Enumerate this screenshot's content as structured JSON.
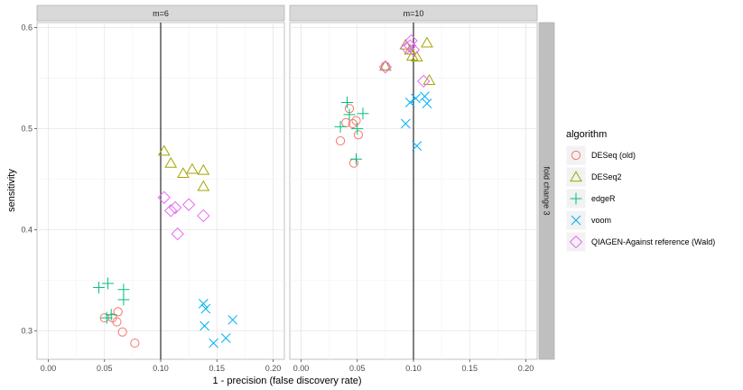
{
  "colors": {
    "DESeq (old)": "#F8766D",
    "DESeq2": "#A3A500",
    "edgeR": "#00BF7D",
    "voom": "#00B0F6",
    "QIAGEN-Against reference (Wald)": "#E76BF3"
  },
  "chart_data": {
    "type": "scatter",
    "xlabel": "1 - precision (false discovery rate)",
    "ylabel": "sensitivity",
    "xlim": [
      -0.01,
      0.21
    ],
    "ylim": [
      0.272,
      0.605
    ],
    "xticks": [
      "0.00",
      "0.05",
      "0.10",
      "0.15",
      "0.20"
    ],
    "xtick_values": [
      0,
      0.05,
      0.1,
      0.15,
      0.2
    ],
    "yticks": [
      "0.3",
      "0.4",
      "0.5",
      "0.6"
    ],
    "ytick_values": [
      0.3,
      0.4,
      0.5,
      0.6
    ],
    "vline_x": 0.1,
    "grid": true,
    "row_strip": "fold change 3",
    "legend": {
      "title": "algorithm",
      "placement": "right",
      "entries": [
        {
          "label": "DESeq (old)",
          "shape": "circle"
        },
        {
          "label": "DESeq2",
          "shape": "triangle"
        },
        {
          "label": "edgeR",
          "shape": "plus"
        },
        {
          "label": "voom",
          "shape": "cross"
        },
        {
          "label": "QIAGEN-Against reference (Wald)",
          "shape": "diamond"
        }
      ]
    },
    "panels": [
      {
        "label": "m=6",
        "series": [
          {
            "name": "DESeq (old)",
            "points": [
              [
                0.05,
                0.313
              ],
              [
                0.057,
                0.313
              ],
              [
                0.061,
                0.309
              ],
              [
                0.062,
                0.319
              ],
              [
                0.066,
                0.299
              ],
              [
                0.077,
                0.288
              ]
            ]
          },
          {
            "name": "DESeq2",
            "points": [
              [
                0.103,
                0.478
              ],
              [
                0.109,
                0.466
              ],
              [
                0.12,
                0.456
              ],
              [
                0.128,
                0.46
              ],
              [
                0.138,
                0.459
              ],
              [
                0.138,
                0.443
              ]
            ]
          },
          {
            "name": "edgeR",
            "points": [
              [
                0.045,
                0.343
              ],
              [
                0.053,
                0.347
              ],
              [
                0.056,
                0.316
              ],
              [
                0.067,
                0.341
              ],
              [
                0.067,
                0.331
              ],
              [
                0.052,
                0.313
              ]
            ]
          },
          {
            "name": "voom",
            "points": [
              [
                0.138,
                0.327
              ],
              [
                0.14,
                0.322
              ],
              [
                0.139,
                0.305
              ],
              [
                0.147,
                0.288
              ],
              [
                0.158,
                0.293
              ],
              [
                0.164,
                0.311
              ]
            ]
          },
          {
            "name": "QIAGEN-Against reference (Wald)",
            "points": [
              [
                0.103,
                0.432
              ],
              [
                0.109,
                0.419
              ],
              [
                0.113,
                0.422
              ],
              [
                0.125,
                0.425
              ],
              [
                0.115,
                0.396
              ],
              [
                0.138,
                0.414
              ]
            ]
          }
        ]
      },
      {
        "label": "m=10",
        "series": [
          {
            "name": "DESeq (old)",
            "points": [
              [
                0.035,
                0.488
              ],
              [
                0.04,
                0.506
              ],
              [
                0.043,
                0.52
              ],
              [
                0.046,
                0.505
              ],
              [
                0.049,
                0.508
              ],
              [
                0.051,
                0.494
              ],
              [
                0.047,
                0.466
              ],
              [
                0.075,
                0.562
              ]
            ]
          },
          {
            "name": "DESeq2",
            "points": [
              [
                0.075,
                0.562
              ],
              [
                0.093,
                0.583
              ],
              [
                0.097,
                0.578
              ],
              [
                0.099,
                0.572
              ],
              [
                0.103,
                0.571
              ],
              [
                0.112,
                0.585
              ],
              [
                0.114,
                0.548
              ]
            ]
          },
          {
            "name": "edgeR",
            "points": [
              [
                0.035,
                0.502
              ],
              [
                0.041,
                0.526
              ],
              [
                0.043,
                0.514
              ],
              [
                0.05,
                0.5
              ],
              [
                0.055,
                0.515
              ],
              [
                0.049,
                0.47
              ]
            ]
          },
          {
            "name": "voom",
            "points": [
              [
                0.093,
                0.505
              ],
              [
                0.097,
                0.526
              ],
              [
                0.102,
                0.53
              ],
              [
                0.11,
                0.532
              ],
              [
                0.112,
                0.525
              ],
              [
                0.103,
                0.483
              ]
            ]
          },
          {
            "name": "QIAGEN-Against reference (Wald)",
            "points": [
              [
                0.075,
                0.561
              ],
              [
                0.094,
                0.58
              ],
              [
                0.097,
                0.582
              ],
              [
                0.098,
                0.587
              ],
              [
                0.1,
                0.578
              ],
              [
                0.109,
                0.547
              ]
            ]
          }
        ]
      }
    ]
  }
}
